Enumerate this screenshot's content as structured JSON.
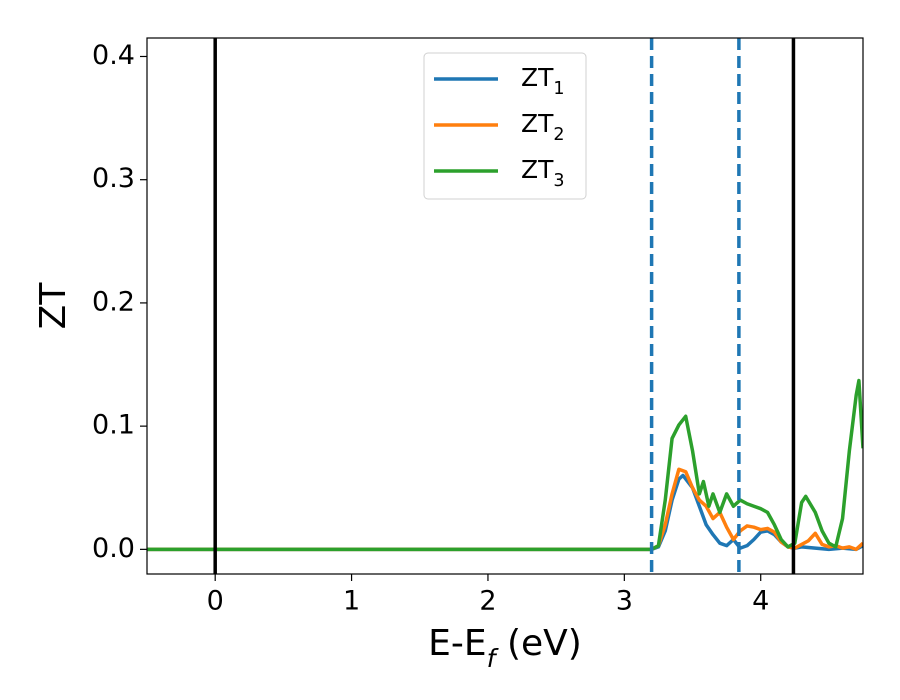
{
  "chart_data": {
    "type": "line",
    "x_label": "E-E_f (eV)",
    "y_label": "ZT",
    "xlim": [
      -0.5,
      4.75
    ],
    "ylim": [
      -0.02,
      0.415
    ],
    "xticks": [
      0,
      1,
      2,
      3,
      4
    ],
    "yticks": [
      {
        "value": 0,
        "label": "0.0"
      },
      {
        "value": 0.1,
        "label": "0.1"
      },
      {
        "value": 0.2,
        "label": "0.2"
      },
      {
        "value": 0.3,
        "label": "0.3"
      },
      {
        "value": 0.4,
        "label": "0.4"
      }
    ],
    "legend": "upper center",
    "vlines": [
      {
        "x": 0,
        "color": "#000000",
        "style": "solid"
      },
      {
        "x": 3.2,
        "color": "#1f77b4",
        "style": "dashed"
      },
      {
        "x": 3.84,
        "color": "#1f77b4",
        "style": "dashed"
      },
      {
        "x": 4.24,
        "color": "#000000",
        "style": "solid"
      }
    ],
    "series": [
      {
        "name": "ZT_1",
        "color": "#1f77b4",
        "x": [
          -0.5,
          3.2,
          3.25,
          3.3,
          3.35,
          3.4,
          3.43,
          3.5,
          3.55,
          3.6,
          3.65,
          3.7,
          3.75,
          3.8,
          3.85,
          3.9,
          3.95,
          4.0,
          4.05,
          4.1,
          4.15,
          4.2,
          4.25,
          4.3,
          4.4,
          4.5,
          4.6,
          4.7,
          4.75
        ],
        "values": [
          0,
          0,
          0.002,
          0.015,
          0.04,
          0.057,
          0.06,
          0.05,
          0.035,
          0.02,
          0.012,
          0.005,
          0.003,
          0.008,
          0.001,
          0.003,
          0.008,
          0.014,
          0.015,
          0.012,
          0.006,
          0.002,
          0.001,
          0.002,
          0.001,
          0,
          0.001,
          0,
          0.003
        ]
      },
      {
        "name": "ZT_2",
        "color": "#ff7f0e",
        "x": [
          -0.5,
          3.2,
          3.25,
          3.3,
          3.35,
          3.4,
          3.45,
          3.5,
          3.55,
          3.6,
          3.65,
          3.7,
          3.75,
          3.8,
          3.85,
          3.9,
          3.95,
          4.0,
          4.05,
          4.1,
          4.15,
          4.2,
          4.25,
          4.3,
          4.35,
          4.4,
          4.45,
          4.5,
          4.55,
          4.6,
          4.65,
          4.7,
          4.75
        ],
        "values": [
          0,
          0,
          0.003,
          0.02,
          0.045,
          0.065,
          0.063,
          0.05,
          0.04,
          0.035,
          0.025,
          0.03,
          0.018,
          0.008,
          0.015,
          0.019,
          0.018,
          0.016,
          0.017,
          0.014,
          0.006,
          0.002,
          0.001,
          0.004,
          0.007,
          0.013,
          0.004,
          0.002,
          0.003,
          0.001,
          0.002,
          0,
          0.005
        ]
      },
      {
        "name": "ZT_3",
        "color": "#2ca02c",
        "x": [
          -0.5,
          3.2,
          3.25,
          3.3,
          3.35,
          3.4,
          3.45,
          3.5,
          3.55,
          3.58,
          3.62,
          3.65,
          3.7,
          3.75,
          3.8,
          3.85,
          3.9,
          3.95,
          4.0,
          4.05,
          4.1,
          4.15,
          4.2,
          4.25,
          4.3,
          4.33,
          4.4,
          4.45,
          4.5,
          4.55,
          4.6,
          4.65,
          4.7,
          4.72,
          4.75
        ],
        "values": [
          0,
          0,
          0.003,
          0.04,
          0.09,
          0.101,
          0.108,
          0.08,
          0.045,
          0.055,
          0.035,
          0.045,
          0.03,
          0.045,
          0.035,
          0.04,
          0.037,
          0.035,
          0.033,
          0.03,
          0.02,
          0.008,
          0.002,
          0.005,
          0.038,
          0.043,
          0.03,
          0.015,
          0.005,
          0.002,
          0.025,
          0.08,
          0.125,
          0.137,
          0.082
        ]
      }
    ]
  }
}
